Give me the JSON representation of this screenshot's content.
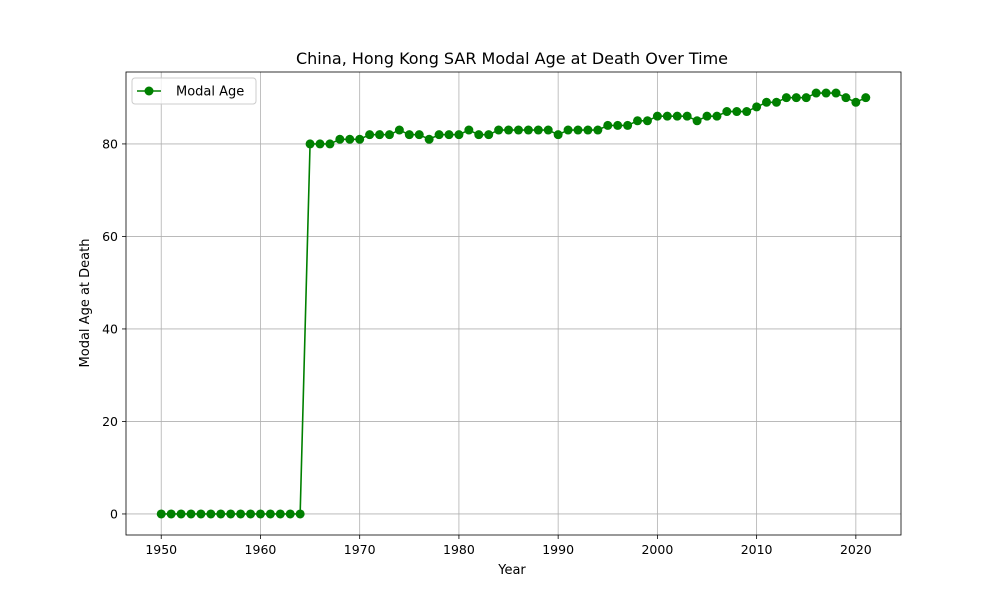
{
  "chart_data": {
    "type": "line",
    "title": "China, Hong Kong SAR Modal Age at Death Over Time",
    "xlabel": "Year",
    "ylabel": "Modal Age at Death",
    "xlim": [
      1946.45,
      2024.55
    ],
    "ylim": [
      -4.55,
      95.55
    ],
    "xticks": [
      1950,
      1960,
      1970,
      1980,
      1990,
      2000,
      2010,
      2020
    ],
    "yticks": [
      0,
      20,
      40,
      60,
      80
    ],
    "grid": true,
    "legend_position": "upper left",
    "series": [
      {
        "name": "Modal Age",
        "color": "#008000",
        "marker": "circle",
        "x": [
          1950,
          1951,
          1952,
          1953,
          1954,
          1955,
          1956,
          1957,
          1958,
          1959,
          1960,
          1961,
          1962,
          1963,
          1964,
          1965,
          1966,
          1967,
          1968,
          1969,
          1970,
          1971,
          1972,
          1973,
          1974,
          1975,
          1976,
          1977,
          1978,
          1979,
          1980,
          1981,
          1982,
          1983,
          1984,
          1985,
          1986,
          1987,
          1988,
          1989,
          1990,
          1991,
          1992,
          1993,
          1994,
          1995,
          1996,
          1997,
          1998,
          1999,
          2000,
          2001,
          2002,
          2003,
          2004,
          2005,
          2006,
          2007,
          2008,
          2009,
          2010,
          2011,
          2012,
          2013,
          2014,
          2015,
          2016,
          2017,
          2018,
          2019,
          2020,
          2021
        ],
        "y": [
          0,
          0,
          0,
          0,
          0,
          0,
          0,
          0,
          0,
          0,
          0,
          0,
          0,
          0,
          0,
          80,
          80,
          80,
          81,
          81,
          81,
          82,
          82,
          82,
          83,
          82,
          82,
          81,
          82,
          82,
          82,
          83,
          82,
          82,
          83,
          83,
          83,
          83,
          83,
          83,
          82,
          83,
          83,
          83,
          83,
          84,
          84,
          84,
          85,
          85,
          86,
          86,
          86,
          86,
          85,
          86,
          86,
          87,
          87,
          87,
          88,
          89,
          89,
          90,
          90,
          90,
          91,
          91,
          91,
          90,
          89,
          90
        ]
      }
    ]
  }
}
